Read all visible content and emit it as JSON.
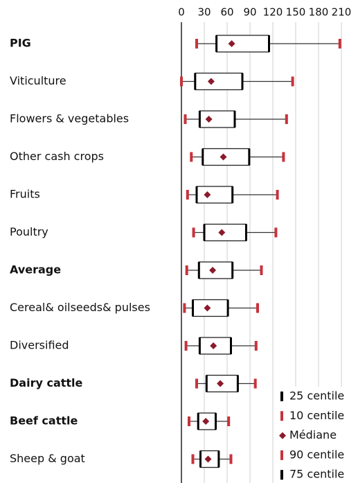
{
  "chart_data": {
    "type": "boxplot",
    "categories": [
      "PIG",
      "Viticulture",
      "Flowers & vegetables",
      "Other cash crops",
      "Fruits",
      "Poultry",
      "Average",
      "Cereal& oilseeds& pulses",
      "Diversified",
      "Dairy cattle",
      "Beef cattle",
      "Sheep & goat"
    ],
    "bold": [
      true,
      false,
      false,
      false,
      false,
      false,
      true,
      false,
      false,
      true,
      true,
      false
    ],
    "series": [
      {
        "name": "25 centile",
        "color": "#000000",
        "values": [
          46,
          18,
          24,
          28,
          20,
          30,
          23,
          15,
          24,
          33,
          22,
          25
        ]
      },
      {
        "name": "10 centile",
        "color": "#c8323c",
        "values": [
          20,
          0,
          5,
          13,
          8,
          16,
          7,
          4,
          6,
          20,
          10,
          15
        ]
      },
      {
        "name": "Médiane",
        "color": "#8b1a2b",
        "values": [
          66,
          39,
          36,
          55,
          34,
          53,
          41,
          34,
          42,
          51,
          32,
          35
        ]
      },
      {
        "name": "90 centile",
        "color": "#c8323c",
        "values": [
          208,
          146,
          138,
          134,
          126,
          124,
          105,
          100,
          98,
          97,
          62,
          65
        ]
      },
      {
        "name": "75 centile",
        "color": "#000000",
        "values": [
          115,
          80,
          70,
          89,
          67,
          85,
          67,
          61,
          65,
          74,
          45,
          49
        ]
      }
    ],
    "xlim": [
      0,
      210
    ],
    "xticks": [
      0,
      30,
      60,
      90,
      120,
      150,
      180,
      210
    ],
    "grid": true
  }
}
